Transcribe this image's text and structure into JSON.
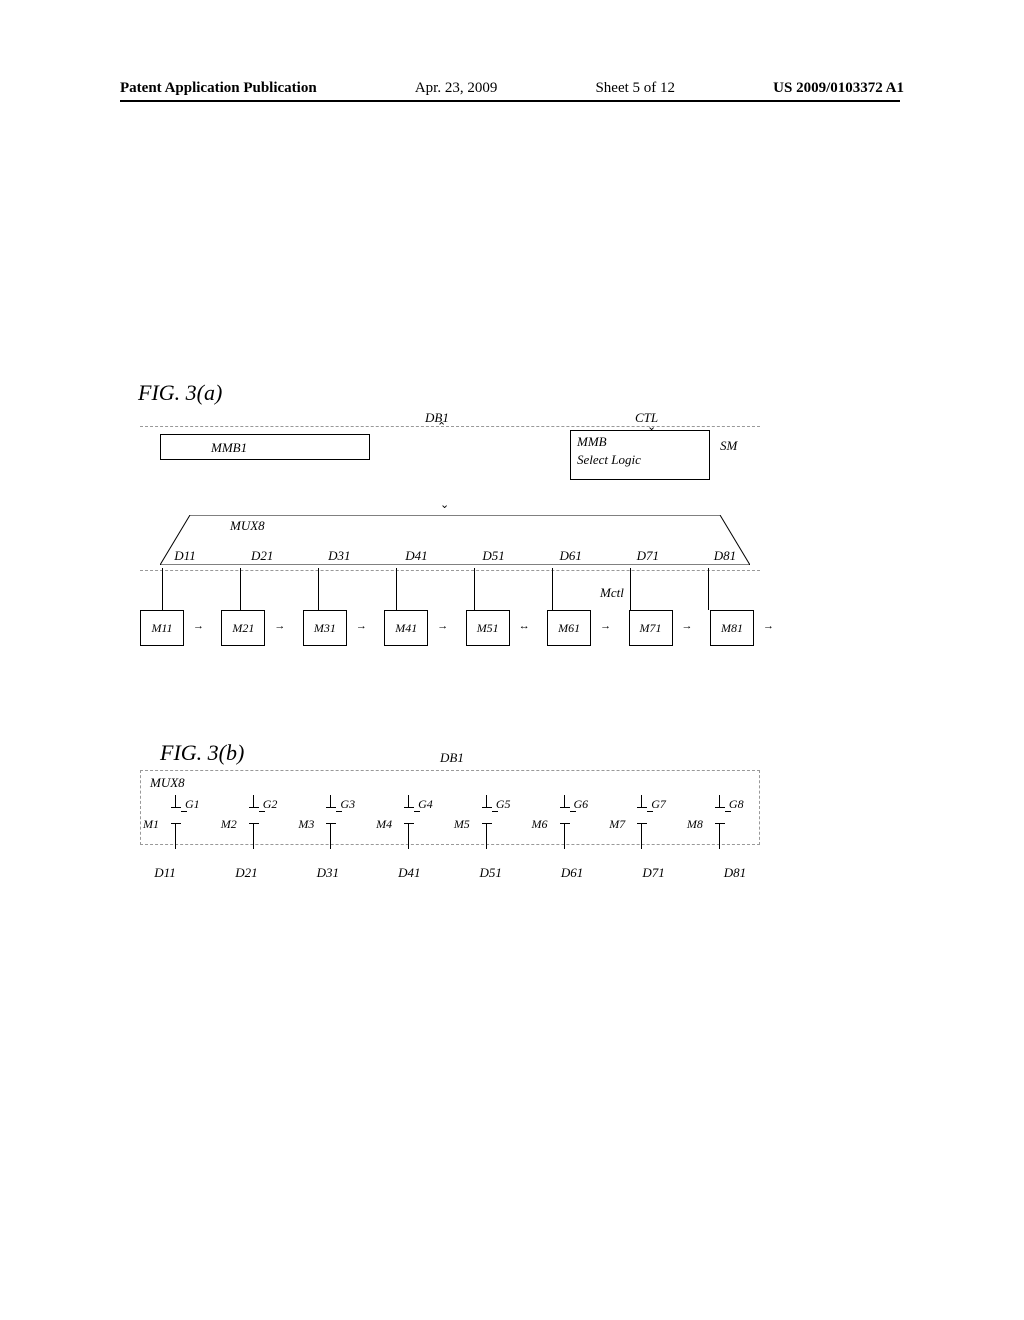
{
  "header": {
    "left": "Patent Application Publication",
    "date": "Apr. 23, 2009",
    "sheet": "Sheet 5 of 12",
    "right": "US 2009/0103372 A1"
  },
  "figA": {
    "label": "FIG. 3(a)",
    "db1": "DB1",
    "ctl": "CTL",
    "mmb1": "MMB1",
    "selectLogic": "MMB\nSelect Logic",
    "sm": "SM",
    "mux8": "MUX8",
    "mctl": "Mctl",
    "d_labels": [
      "D11",
      "D21",
      "D31",
      "D41",
      "D51",
      "D61",
      "D71",
      "D81"
    ],
    "m_boxes": [
      "M11",
      "M21",
      "M31",
      "M41",
      "M51",
      "M61",
      "M71",
      "M81"
    ],
    "m_arrows": [
      "→",
      "→",
      "→",
      "→",
      "↔",
      "→",
      "→",
      "→"
    ]
  },
  "figB": {
    "label": "FIG. 3(b)",
    "db1": "DB1",
    "mux8": "MUX8",
    "m_labels": [
      "M1",
      "M2",
      "M3",
      "M4",
      "M5",
      "M6",
      "M7",
      "M8"
    ],
    "g_labels": [
      "G1",
      "G2",
      "G3",
      "G4",
      "G5",
      "G6",
      "G7",
      "G8"
    ],
    "d_labels": [
      "D11",
      "D21",
      "D31",
      "D41",
      "D51",
      "D61",
      "D71",
      "D81"
    ]
  },
  "style": {
    "page_bg": "#ffffff",
    "text_color": "#000000",
    "dash_color": "#999999",
    "font_family": "Times New Roman",
    "fig_label_fontsize_pt": 17,
    "body_fontsize_pt": 10,
    "header_fontsize_pt": 11
  }
}
